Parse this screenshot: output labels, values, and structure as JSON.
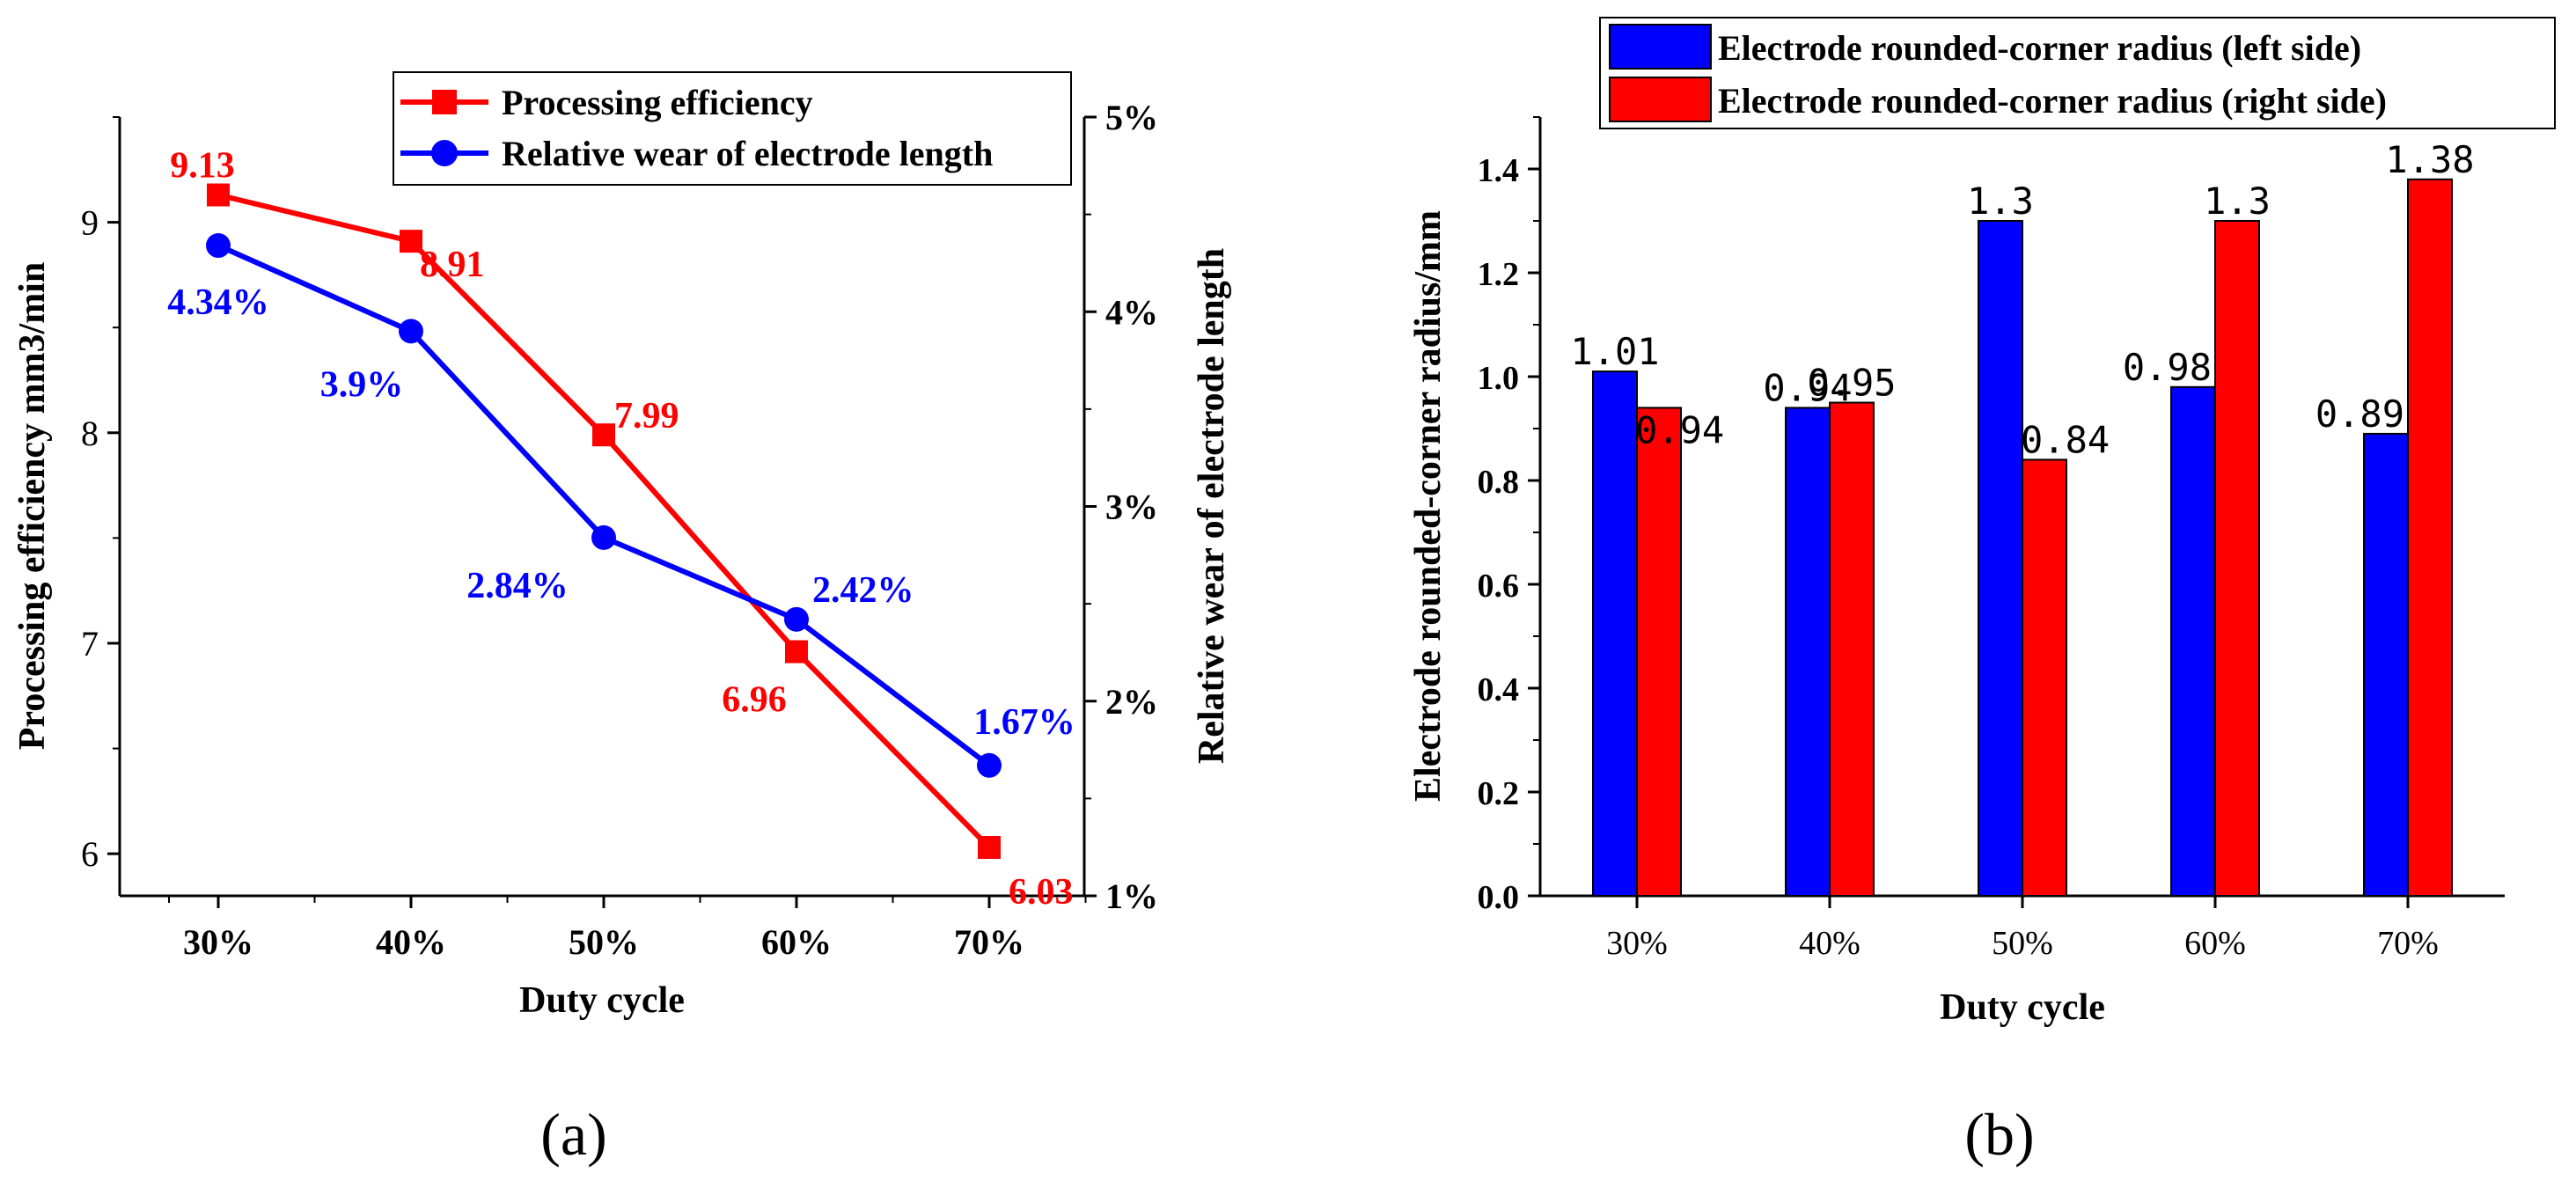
{
  "chart_data": [
    {
      "type": "line",
      "panel_label": "(a)",
      "xlabel": "Duty cycle",
      "ylabel_left": "Processing efficiency mm3/min",
      "ylabel_right": "Relative wear of electrode length",
      "categories": [
        "30%",
        "40%",
        "50%",
        "60%",
        "70%"
      ],
      "ylim_left": [
        5.8,
        9.5
      ],
      "ylim_right": [
        1,
        5
      ],
      "y_ticks_left": [
        6,
        7,
        8,
        9
      ],
      "y_tick_labels_left": [
        "6",
        "7",
        "8",
        "9"
      ],
      "y_ticks_right": [
        1,
        2,
        3,
        4,
        5
      ],
      "y_tick_labels_right": [
        "1%",
        "2%",
        "3%",
        "4%",
        "5%"
      ],
      "legend_position": "top-right",
      "series": [
        {
          "name": "Processing efficiency",
          "axis": "left",
          "color": "#ff0000",
          "marker": "square",
          "values": [
            9.13,
            8.91,
            7.99,
            6.96,
            6.03
          ],
          "labels": [
            "9.13",
            "8.91",
            "7.99",
            "6.96",
            "6.03"
          ]
        },
        {
          "name": "Relative wear of electrode length",
          "axis": "right",
          "color": "#0000ff",
          "marker": "circle",
          "values": [
            4.34,
            3.9,
            2.84,
            2.42,
            1.67
          ],
          "labels": [
            "4.34%",
            "3.9%",
            "2.84%",
            "2.42%",
            "1.67%"
          ]
        }
      ]
    },
    {
      "type": "bar",
      "panel_label": "(b)",
      "xlabel": "Duty cycle",
      "ylabel": "Electrode rounded-corner radius/mm",
      "categories": [
        "30%",
        "40%",
        "50%",
        "60%",
        "70%"
      ],
      "ylim": [
        0,
        1.5
      ],
      "y_ticks": [
        0,
        0.2,
        0.4,
        0.6,
        0.8,
        1.0,
        1.2,
        1.4
      ],
      "y_tick_labels": [
        "0.0",
        "0.2",
        "0.4",
        "0.6",
        "0.8",
        "1.0",
        "1.2",
        "1.4"
      ],
      "legend_position": "top",
      "series": [
        {
          "name": "Electrode rounded-corner radius (left side)",
          "color": "#0000ff",
          "values": [
            1.01,
            0.94,
            1.3,
            0.98,
            0.89
          ],
          "labels": [
            "1.01",
            "0.94",
            "1.3",
            "0.98",
            "0.89"
          ]
        },
        {
          "name": "Electrode rounded-corner radius (right side)",
          "color": "#ff0000",
          "values": [
            0.94,
            0.95,
            0.84,
            1.3,
            1.38
          ],
          "labels": [
            "0.94",
            "0.95",
            "0.84",
            "1.3",
            "1.38"
          ]
        }
      ]
    }
  ]
}
